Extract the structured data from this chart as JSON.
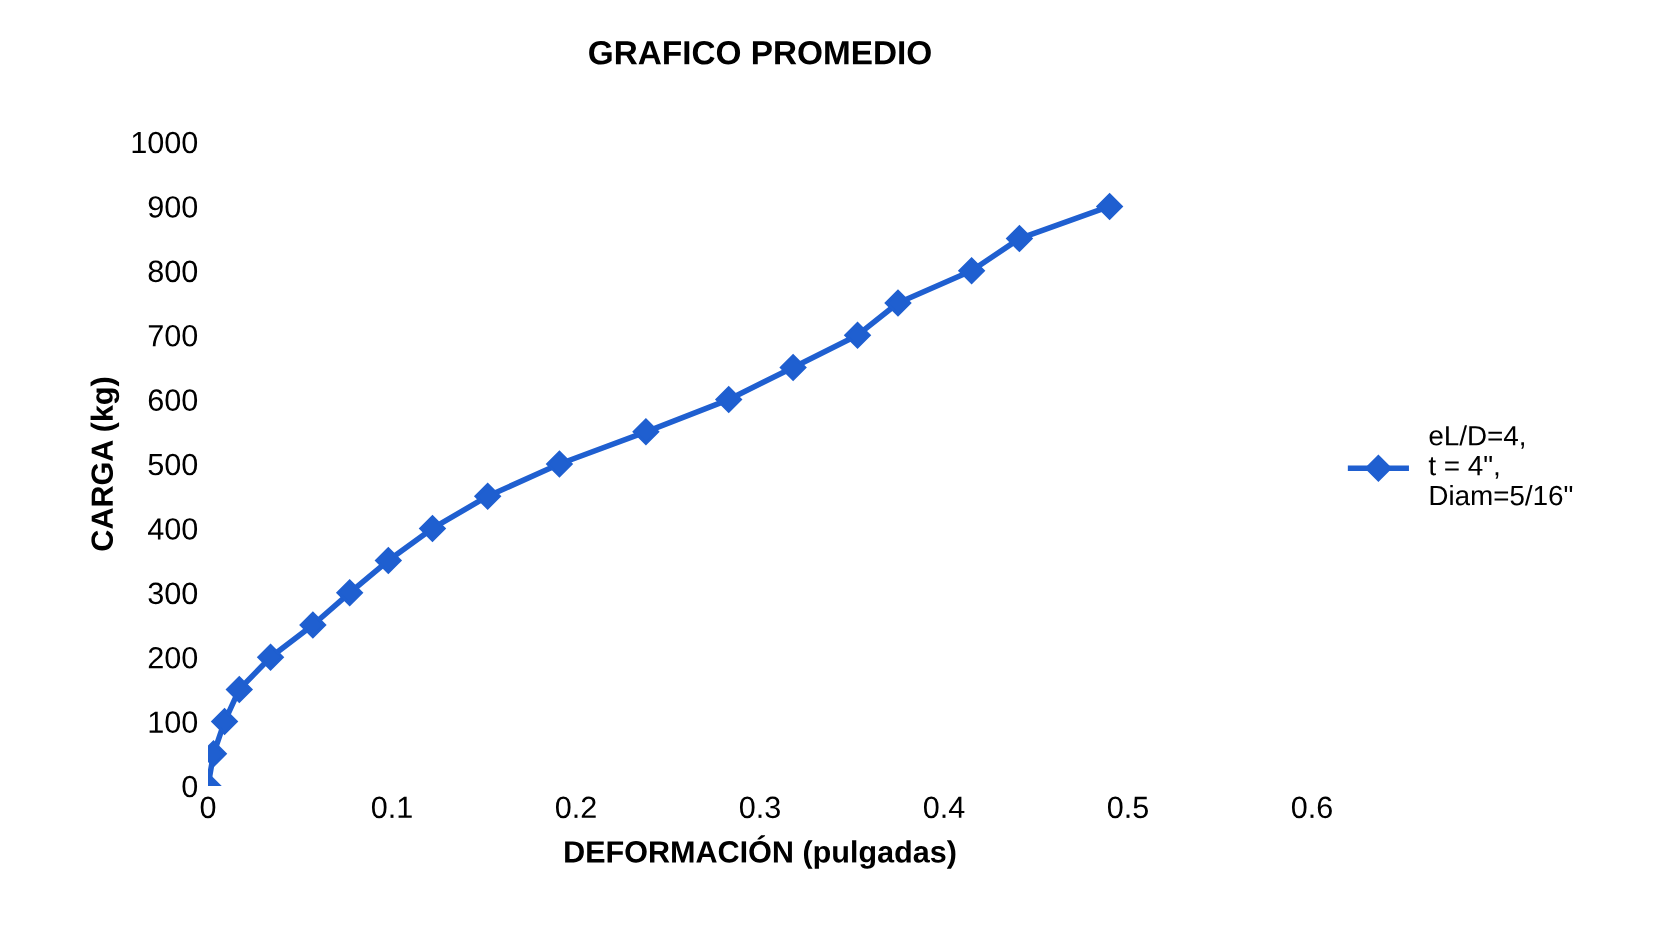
{
  "chart_data": {
    "type": "line",
    "title": "GRAFICO PROMEDIO",
    "xlabel": "DEFORMACIÓN (pulgadas)",
    "ylabel": "CARGA (kg)",
    "x": [
      0,
      0.003,
      0.009,
      0.017,
      0.034,
      0.057,
      0.077,
      0.098,
      0.122,
      0.152,
      0.191,
      0.238,
      0.283,
      0.318,
      0.353,
      0.375,
      0.415,
      0.441,
      0.49
    ],
    "series": [
      {
        "name": "eL/D=4,\nt = 4\",\nDiam=5/16\"",
        "color": "#1f5fd0",
        "values": [
          0,
          50,
          100,
          150,
          200,
          250,
          300,
          350,
          400,
          450,
          500,
          550,
          600,
          650,
          700,
          750,
          800,
          850,
          900
        ]
      }
    ],
    "xlim": [
      0,
      0.6
    ],
    "xticks": [
      0,
      0.1,
      0.2,
      0.3,
      0.4,
      0.5,
      0.6
    ],
    "ylim": [
      0,
      1000
    ],
    "yticks": [
      0,
      100,
      200,
      300,
      400,
      500,
      600,
      700,
      800,
      900,
      1000
    ],
    "marker": "diamond",
    "line_style": "solid",
    "grid": false,
    "legend": "right"
  }
}
